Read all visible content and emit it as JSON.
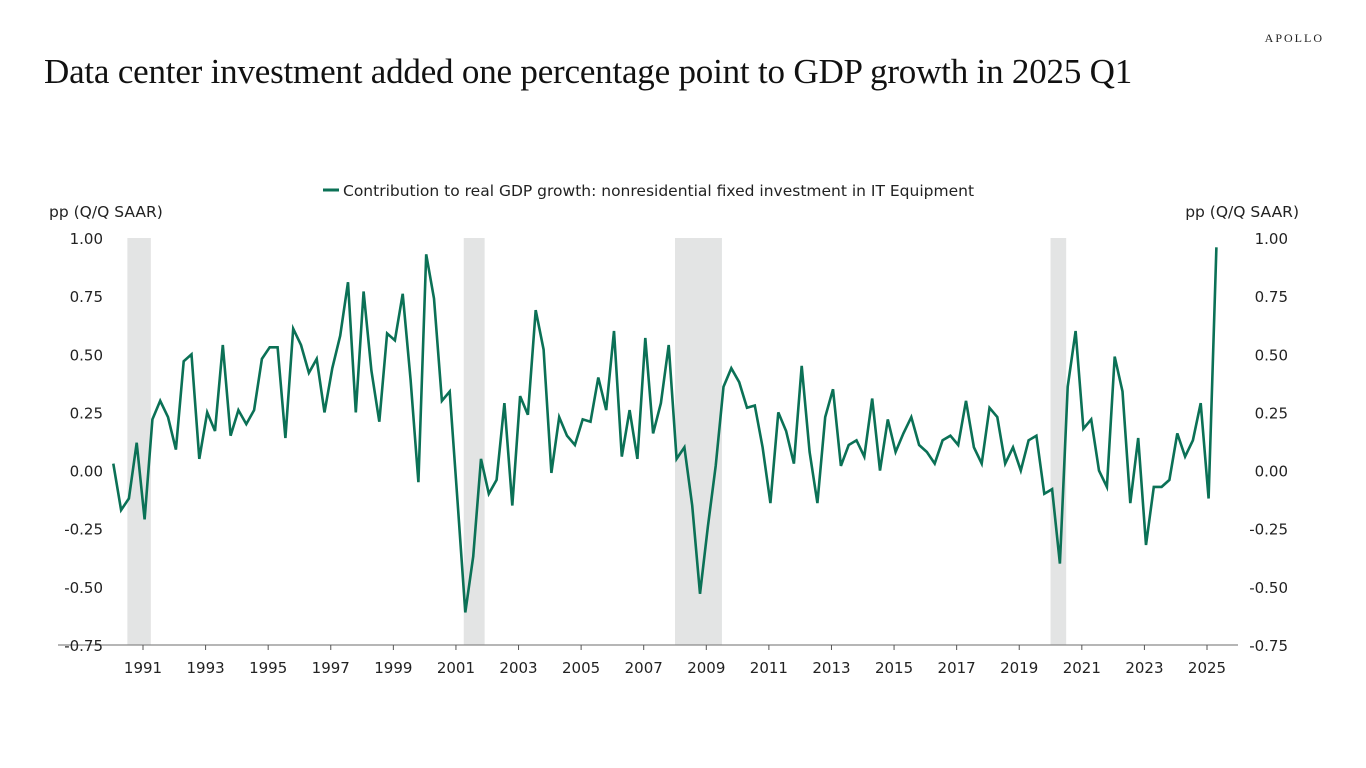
{
  "header": {
    "brand": "APOLLO",
    "title": "Data center investment added one percentage point to GDP growth in 2025 Q1"
  },
  "colors": {
    "series": "#0b7156",
    "recession": "#e3e4e4",
    "axis": "#8a8a8a"
  },
  "chart_data": {
    "type": "line",
    "title": "Data center investment added one percentage point to GDP growth in 2025 Q1",
    "ylabel_left": "pp (Q/Q SAAR)",
    "ylabel_right": "pp (Q/Q SAAR)",
    "xlabel": "",
    "ylim": [
      -0.75,
      1.0
    ],
    "yticks": [
      "1.00",
      "0.75",
      "0.50",
      "0.25",
      "0.00",
      "-0.25",
      "-0.50",
      "-0.75"
    ],
    "ytick_values": [
      1.0,
      0.75,
      0.5,
      0.25,
      0.0,
      -0.25,
      -0.5,
      -0.75
    ],
    "xlim": [
      1989.9,
      2025.6
    ],
    "xticks": [
      "1991",
      "1993",
      "1995",
      "1997",
      "1999",
      "2001",
      "2003",
      "2005",
      "2007",
      "2009",
      "2011",
      "2013",
      "2015",
      "2017",
      "2019",
      "2021",
      "2023",
      "2025"
    ],
    "grid": false,
    "legend_position": "top-center",
    "recessions": [
      {
        "start": 1990.5,
        "end": 1991.25
      },
      {
        "start": 2001.25,
        "end": 2001.917
      },
      {
        "start": 2008.0,
        "end": 2009.5
      },
      {
        "start": 2020.0,
        "end": 2020.5
      }
    ],
    "series": [
      {
        "name": "Contribution to real GDP growth: nonresidential fixed investment in IT Equipment",
        "start": "1990Q1",
        "frequency": "quarterly",
        "values": [
          0.03,
          -0.17,
          -0.12,
          0.12,
          -0.21,
          0.22,
          0.3,
          0.23,
          0.09,
          0.47,
          0.5,
          0.05,
          0.25,
          0.17,
          0.54,
          0.15,
          0.26,
          0.2,
          0.26,
          0.48,
          0.53,
          0.53,
          0.14,
          0.61,
          0.54,
          0.42,
          0.48,
          0.25,
          0.44,
          0.58,
          0.81,
          0.25,
          0.77,
          0.43,
          0.21,
          0.59,
          0.56,
          0.76,
          0.39,
          -0.05,
          0.93,
          0.74,
          0.3,
          0.34,
          -0.13,
          -0.61,
          -0.37,
          0.05,
          -0.1,
          -0.04,
          0.29,
          -0.15,
          0.32,
          0.24,
          0.69,
          0.52,
          -0.01,
          0.23,
          0.15,
          0.11,
          0.22,
          0.21,
          0.4,
          0.26,
          0.6,
          0.06,
          0.26,
          0.05,
          0.57,
          0.16,
          0.29,
          0.54,
          0.05,
          0.1,
          -0.15,
          -0.53,
          -0.24,
          0.02,
          0.36,
          0.44,
          0.38,
          0.27,
          0.28,
          0.1,
          -0.14,
          0.25,
          0.17,
          0.03,
          0.45,
          0.08,
          -0.14,
          0.23,
          0.35,
          0.02,
          0.11,
          0.13,
          0.06,
          0.31,
          0.0,
          0.22,
          0.08,
          0.16,
          0.23,
          0.11,
          0.08,
          0.03,
          0.13,
          0.15,
          0.11,
          0.3,
          0.1,
          0.03,
          0.27,
          0.23,
          0.03,
          0.1,
          0.0,
          0.13,
          0.15,
          -0.1,
          -0.08,
          -0.4,
          0.36,
          0.6,
          0.18,
          0.22,
          0.0,
          -0.07,
          0.49,
          0.34,
          -0.14,
          0.14,
          -0.32,
          -0.07,
          -0.07,
          -0.04,
          0.16,
          0.06,
          0.13,
          0.29,
          -0.12,
          0.96
        ]
      }
    ]
  }
}
